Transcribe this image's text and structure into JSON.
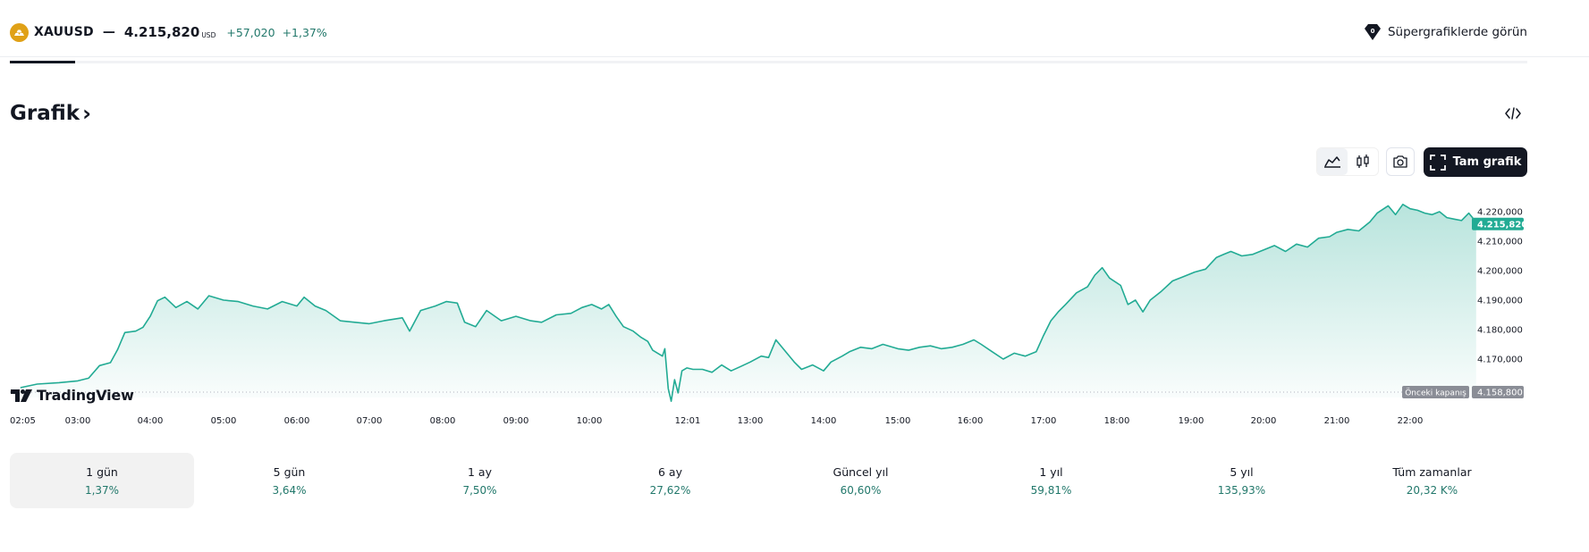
{
  "header": {
    "symbol": "XAUUSD",
    "separator": "—",
    "price": "4.215,820",
    "currency": "USD",
    "change_abs": "+57,020",
    "change_pct": "+1,37%",
    "super_charts_label": "Süpergrafiklerde görün"
  },
  "section": {
    "title": "Grafik",
    "chevron": "›"
  },
  "toolbar": {
    "full_chart_label": "Tam grafik",
    "icons": [
      "area-chart-icon",
      "candlestick-icon",
      "camera-icon",
      "fullscreen-icon",
      "embed-code-icon"
    ]
  },
  "brand": {
    "logo_text": "TradingView"
  },
  "colors": {
    "accent": "#22ab94",
    "positive_text": "#22786b",
    "gold": "#e0a117",
    "dark": "#131722",
    "prev_close_tag": "#8a8d96"
  },
  "chart_data": {
    "type": "area",
    "x_tick_labels": [
      "02:05",
      "03:00",
      "04:00",
      "05:00",
      "06:00",
      "07:00",
      "08:00",
      "09:00",
      "10:00",
      "12:01",
      "13:00",
      "14:00",
      "15:00",
      "16:00",
      "17:00",
      "18:00",
      "19:00",
      "20:00",
      "21:00",
      "22:00"
    ],
    "y_tick_labels": [
      "4.220,000",
      "4.210,000",
      "4.200,000",
      "4.190,000",
      "4.180,000",
      "4.170,000"
    ],
    "ylim": [
      4155.5,
      4229.2
    ],
    "last_price_label": "4.215,820",
    "last_price": 4215.82,
    "prev_close_label": "Önceki kapanış",
    "prev_close_value_label": "4.158,800",
    "prev_close": 4158.8,
    "series": [
      {
        "points": [
          [
            2.08,
            4160.3
          ],
          [
            2.35,
            4161.5
          ],
          [
            2.7,
            4162.0
          ],
          [
            3.0,
            4162.6
          ],
          [
            3.15,
            4163.5
          ],
          [
            3.3,
            4167.8
          ],
          [
            3.45,
            4168.8
          ],
          [
            3.55,
            4173.2
          ],
          [
            3.65,
            4179.0
          ],
          [
            3.8,
            4179.5
          ],
          [
            3.9,
            4180.8
          ],
          [
            4.0,
            4184.5
          ],
          [
            4.1,
            4189.8
          ],
          [
            4.2,
            4191.0
          ],
          [
            4.35,
            4187.5
          ],
          [
            4.5,
            4189.5
          ],
          [
            4.65,
            4187.0
          ],
          [
            4.8,
            4191.5
          ],
          [
            5.0,
            4190.0
          ],
          [
            5.2,
            4189.5
          ],
          [
            5.4,
            4188.0
          ],
          [
            5.6,
            4187.0
          ],
          [
            5.8,
            4189.5
          ],
          [
            6.0,
            4188.0
          ],
          [
            6.1,
            4191.0
          ],
          [
            6.25,
            4188.0
          ],
          [
            6.4,
            4186.5
          ],
          [
            6.6,
            4183.0
          ],
          [
            6.8,
            4182.5
          ],
          [
            7.0,
            4182.0
          ],
          [
            7.2,
            4183.0
          ],
          [
            7.45,
            4184.0
          ],
          [
            7.55,
            4179.5
          ],
          [
            7.7,
            4186.5
          ],
          [
            7.9,
            4188.0
          ],
          [
            8.05,
            4189.5
          ],
          [
            8.2,
            4189.0
          ],
          [
            8.3,
            4182.5
          ],
          [
            8.45,
            4181.0
          ],
          [
            8.6,
            4186.5
          ],
          [
            8.8,
            4183.0
          ],
          [
            9.0,
            4184.5
          ],
          [
            9.2,
            4183.0
          ],
          [
            9.35,
            4182.5
          ],
          [
            9.55,
            4185.0
          ],
          [
            9.75,
            4185.5
          ],
          [
            9.9,
            4187.5
          ],
          [
            10.05,
            4188.5
          ],
          [
            10.25,
            4187.0
          ],
          [
            10.4,
            4188.5
          ],
          [
            10.55,
            4184.5
          ],
          [
            10.7,
            4181.0
          ],
          [
            10.9,
            4179.5
          ],
          [
            11.05,
            4177.5
          ],
          [
            11.2,
            4176.0
          ],
          [
            11.3,
            4173.0
          ],
          [
            11.4,
            4172.0
          ],
          [
            11.5,
            4171.0
          ],
          [
            11.55,
            4173.5
          ],
          [
            11.62,
            4160.0
          ],
          [
            11.68,
            4155.7
          ],
          [
            11.75,
            4163.0
          ],
          [
            11.82,
            4158.5
          ],
          [
            11.9,
            4166.0
          ],
          [
            12.0,
            4167.0
          ],
          [
            12.1,
            4166.5
          ],
          [
            12.25,
            4166.5
          ],
          [
            12.4,
            4165.5
          ],
          [
            12.55,
            4168.0
          ],
          [
            12.7,
            4166.0
          ],
          [
            12.85,
            4167.5
          ],
          [
            13.0,
            4169.0
          ],
          [
            13.15,
            4171.0
          ],
          [
            13.25,
            4170.5
          ],
          [
            13.35,
            4176.5
          ],
          [
            13.5,
            4172.0
          ],
          [
            13.6,
            4169.0
          ],
          [
            13.7,
            4166.5
          ],
          [
            13.85,
            4168.0
          ],
          [
            14.0,
            4166.0
          ],
          [
            14.1,
            4169.0
          ],
          [
            14.25,
            4171.0
          ],
          [
            14.35,
            4172.5
          ],
          [
            14.5,
            4174.0
          ],
          [
            14.65,
            4173.5
          ],
          [
            14.8,
            4175.0
          ],
          [
            15.0,
            4173.5
          ],
          [
            15.15,
            4173.0
          ],
          [
            15.3,
            4174.0
          ],
          [
            15.45,
            4174.5
          ],
          [
            15.6,
            4173.5
          ],
          [
            15.75,
            4174.0
          ],
          [
            15.9,
            4175.0
          ],
          [
            16.05,
            4176.5
          ],
          [
            16.15,
            4175.0
          ],
          [
            16.3,
            4172.5
          ],
          [
            16.45,
            4170.0
          ],
          [
            16.6,
            4172.0
          ],
          [
            16.75,
            4171.0
          ],
          [
            16.9,
            4172.5
          ],
          [
            17.0,
            4178.0
          ],
          [
            17.1,
            4183.0
          ],
          [
            17.2,
            4186.0
          ],
          [
            17.3,
            4188.5
          ],
          [
            17.45,
            4192.5
          ],
          [
            17.6,
            4194.5
          ],
          [
            17.7,
            4198.5
          ],
          [
            17.8,
            4201.0
          ],
          [
            17.9,
            4197.5
          ],
          [
            18.05,
            4195.0
          ],
          [
            18.15,
            4188.5
          ],
          [
            18.25,
            4190.0
          ],
          [
            18.35,
            4186.0
          ],
          [
            18.45,
            4190.0
          ],
          [
            18.6,
            4193.0
          ],
          [
            18.75,
            4196.5
          ],
          [
            18.9,
            4198.0
          ],
          [
            19.05,
            4199.5
          ],
          [
            19.2,
            4200.5
          ],
          [
            19.35,
            4204.5
          ],
          [
            19.45,
            4205.5
          ],
          [
            19.55,
            4206.5
          ],
          [
            19.7,
            4205.0
          ],
          [
            19.85,
            4205.5
          ],
          [
            20.0,
            4207.0
          ],
          [
            20.15,
            4208.5
          ],
          [
            20.3,
            4206.5
          ],
          [
            20.45,
            4209.0
          ],
          [
            20.6,
            4208.0
          ],
          [
            20.75,
            4211.0
          ],
          [
            20.9,
            4211.5
          ],
          [
            21.0,
            4213.0
          ],
          [
            21.15,
            4214.0
          ],
          [
            21.3,
            4213.5
          ],
          [
            21.45,
            4216.5
          ],
          [
            21.55,
            4219.5
          ],
          [
            21.7,
            4222.0
          ],
          [
            21.8,
            4219.0
          ],
          [
            21.9,
            4222.5
          ],
          [
            22.0,
            4221.0
          ],
          [
            22.1,
            4220.5
          ],
          [
            22.2,
            4219.5
          ],
          [
            22.3,
            4219.0
          ],
          [
            22.4,
            4220.0
          ],
          [
            22.5,
            4218.0
          ],
          [
            22.6,
            4217.5
          ],
          [
            22.7,
            4217.0
          ],
          [
            22.8,
            4219.5
          ],
          [
            22.85,
            4218.0
          ],
          [
            22.9,
            4215.8
          ]
        ]
      }
    ]
  },
  "periods": [
    {
      "label": "1 gün",
      "value": "1,37%"
    },
    {
      "label": "5 gün",
      "value": "3,64%"
    },
    {
      "label": "1 ay",
      "value": "7,50%"
    },
    {
      "label": "6 ay",
      "value": "27,62%"
    },
    {
      "label": "Güncel yıl",
      "value": "60,60%"
    },
    {
      "label": "1 yıl",
      "value": "59,81%"
    },
    {
      "label": "5 yıl",
      "value": "135,93%"
    },
    {
      "label": "Tüm zamanlar",
      "value": "20,32 K%"
    }
  ]
}
